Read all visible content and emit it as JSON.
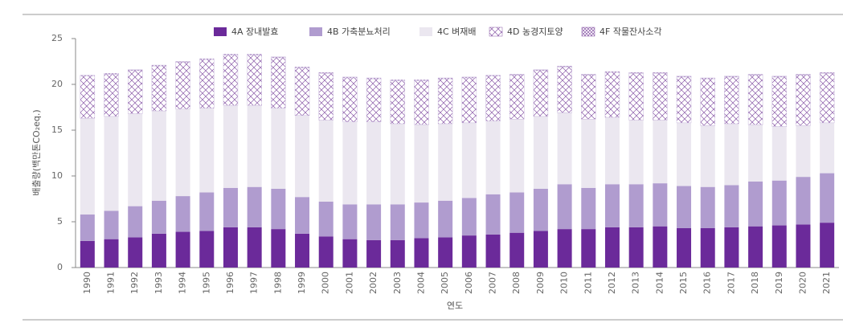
{
  "chart_data": {
    "type": "stacked_bar",
    "y_label": "배출량(백만톤CO₂eq.)",
    "x_label": "연도",
    "categories": [
      "1990",
      "1991",
      "1992",
      "1993",
      "1994",
      "1995",
      "1996",
      "1997",
      "1998",
      "1999",
      "2000",
      "2001",
      "2002",
      "2003",
      "2004",
      "2005",
      "2006",
      "2007",
      "2008",
      "2009",
      "2010",
      "2011",
      "2012",
      "2013",
      "2014",
      "2015",
      "2016",
      "2017",
      "2018",
      "2019",
      "2020",
      "2021"
    ],
    "series": [
      {
        "name": "4A 장내발효",
        "color": "#6b2a9a",
        "hatch": "none",
        "values": [
          2.9,
          3.1,
          3.3,
          3.7,
          3.9,
          4.0,
          4.4,
          4.4,
          4.2,
          3.7,
          3.4,
          3.1,
          3.0,
          3.0,
          3.2,
          3.3,
          3.5,
          3.6,
          3.8,
          4.0,
          4.2,
          4.2,
          4.4,
          4.4,
          4.5,
          4.3,
          4.3,
          4.4,
          4.5,
          4.6,
          4.7,
          4.9
        ]
      },
      {
        "name": "4B 가축분뇨처리",
        "color": "#b09ccf",
        "hatch": "none",
        "values": [
          2.9,
          3.1,
          3.4,
          3.6,
          3.9,
          4.2,
          4.3,
          4.4,
          4.4,
          4.0,
          3.8,
          3.8,
          3.9,
          3.9,
          3.9,
          4.0,
          4.1,
          4.4,
          4.4,
          4.6,
          4.9,
          4.5,
          4.7,
          4.7,
          4.7,
          4.6,
          4.5,
          4.6,
          4.9,
          4.9,
          5.2,
          5.4
        ]
      },
      {
        "name": "4C 벼재배",
        "color": "#ebe7f0",
        "hatch": "none",
        "values": [
          10.5,
          10.3,
          10.1,
          9.8,
          9.5,
          9.2,
          9.0,
          8.9,
          8.8,
          8.9,
          8.9,
          9.0,
          9.0,
          8.8,
          8.5,
          8.4,
          8.2,
          8.0,
          8.0,
          7.9,
          7.8,
          7.5,
          7.3,
          7.0,
          6.9,
          6.9,
          6.7,
          6.7,
          6.2,
          5.9,
          5.6,
          5.5
        ]
      },
      {
        "name": "4D 농경지토양",
        "color": "#8a5aa8",
        "hatch": "cross",
        "values": [
          4.6,
          4.6,
          4.7,
          4.9,
          5.1,
          5.3,
          5.5,
          5.5,
          5.5,
          5.2,
          5.1,
          4.8,
          4.7,
          4.7,
          4.8,
          4.9,
          4.9,
          4.9,
          4.8,
          5.0,
          5.0,
          4.8,
          4.9,
          5.1,
          5.1,
          5.0,
          5.1,
          5.1,
          5.4,
          5.4,
          5.5,
          5.4
        ]
      },
      {
        "name": "4F 작물잔사소각",
        "color": "#8a5aa8",
        "hatch": "dense",
        "values": [
          0.1,
          0.1,
          0.1,
          0.1,
          0.1,
          0.1,
          0.1,
          0.1,
          0.1,
          0.1,
          0.1,
          0.1,
          0.1,
          0.1,
          0.1,
          0.1,
          0.1,
          0.1,
          0.1,
          0.1,
          0.1,
          0.1,
          0.1,
          0.1,
          0.1,
          0.1,
          0.1,
          0.1,
          0.1,
          0.1,
          0.1,
          0.1
        ]
      }
    ],
    "ylim": [
      0,
      25
    ],
    "yticks": [
      0,
      5,
      10,
      15,
      20,
      25
    ],
    "legend": "top"
  }
}
